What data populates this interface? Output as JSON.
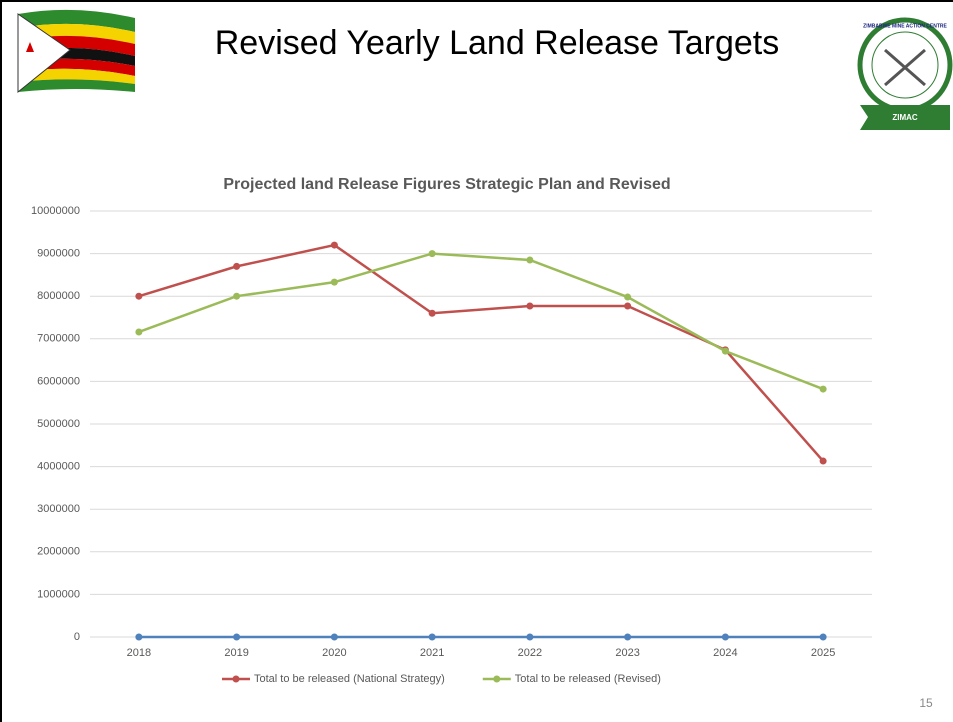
{
  "header": {
    "title": "Revised Yearly Land Release Targets",
    "logo_text": "ZIMBABWE MINE ACTION CENTRE",
    "logo_label": "ZIMAC"
  },
  "page_number": "15",
  "chart_data": {
    "type": "line",
    "title": "Projected land Release Figures Strategic Plan and Revised",
    "categories": [
      "2018",
      "2019",
      "2020",
      "2021",
      "2022",
      "2023",
      "2024",
      "2025"
    ],
    "series": [
      {
        "color": "#4f81bd",
        "values": [
          0,
          0,
          0,
          0,
          0,
          0,
          0,
          0
        ]
      },
      {
        "name": "Total to be released (National Strategy)",
        "color": "#c0504d",
        "values": [
          8000000,
          8700000,
          9200000,
          7600000,
          7770000,
          7770000,
          6740000,
          4130000
        ]
      },
      {
        "name": "Total to be released (Revised)",
        "color": "#9bbb59",
        "values": [
          7160000,
          8000000,
          8330000,
          9000000,
          8850000,
          7980000,
          6710000,
          5820000
        ]
      }
    ],
    "ylim": [
      0,
      10000000
    ],
    "yticks": [
      0,
      1000000,
      2000000,
      3000000,
      4000000,
      5000000,
      6000000,
      7000000,
      8000000,
      9000000,
      10000000
    ],
    "grid": true,
    "legend": "bottom"
  }
}
